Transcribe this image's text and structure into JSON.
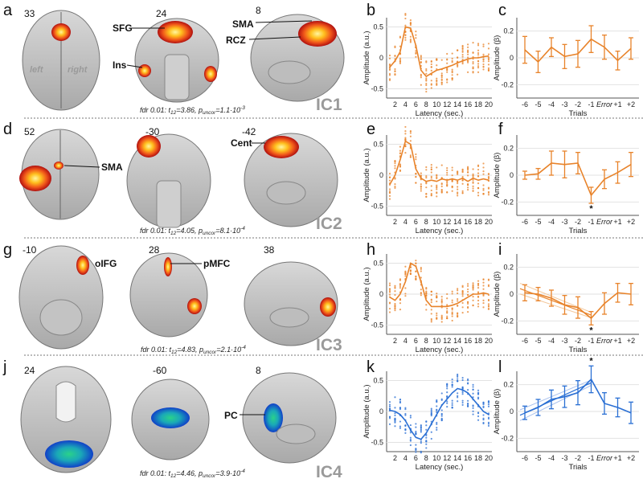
{
  "rows": [
    {
      "id": "IC1",
      "letters": [
        "a",
        "b",
        "c"
      ],
      "ic_label": "IC1",
      "slices": [
        "33",
        "24",
        "8"
      ],
      "regions": [
        "SFG",
        "Ins",
        "SMA",
        "RCZ"
      ],
      "sides": [
        "left",
        "right"
      ],
      "stat": {
        "t_pre": "fdr 0.01: t",
        "t_sub": "12",
        "t_val": "=3.86, p",
        "p_sub": "uncor",
        "p_val": "=1.1·10",
        "p_exp": "-3"
      },
      "colormap": "hot",
      "line_color": "#e8832a"
    },
    {
      "id": "IC2",
      "letters": [
        "d",
        "e",
        "f"
      ],
      "ic_label": "IC2",
      "slices": [
        "52",
        "-30",
        "-42"
      ],
      "regions": [
        "SMA",
        "Cent"
      ],
      "stat": {
        "t_pre": "fdr 0.01: t",
        "t_sub": "12",
        "t_val": "=4.05, p",
        "p_sub": "uncor",
        "p_val": "=8.1·10",
        "p_exp": "-4"
      },
      "colormap": "hot",
      "line_color": "#e8832a",
      "significance_marker": "*"
    },
    {
      "id": "IC3",
      "letters": [
        "g",
        "h",
        "i"
      ],
      "ic_label": "IC3",
      "slices": [
        "-10",
        "28",
        "38"
      ],
      "regions": [
        "oIFG",
        "pMFC"
      ],
      "stat": {
        "t_pre": "fdr 0.01: t",
        "t_sub": "12",
        "t_val": "=4.83, p",
        "p_sub": "uncor",
        "p_val": "=2.1·10",
        "p_exp": "-4"
      },
      "colormap": "hot",
      "line_color": "#e8832a",
      "significance_marker": "*"
    },
    {
      "id": "IC4",
      "letters": [
        "j",
        "k",
        "l"
      ],
      "ic_label": "IC4",
      "slices": [
        "24",
        "-60",
        "8"
      ],
      "regions": [
        "PC"
      ],
      "stat": {
        "t_pre": "fdr 0.01: t",
        "t_sub": "12",
        "t_val": "=4.46, p",
        "p_sub": "uncor",
        "p_val": "=3.9·10",
        "p_exp": "-4"
      },
      "colormap": "winter",
      "line_color": "#2a6fd4",
      "significance_marker": "*"
    }
  ],
  "chart_data": [
    {
      "panel": "b",
      "type": "line",
      "x": [
        1,
        2,
        3,
        4,
        5,
        6,
        7,
        8,
        9,
        10,
        11,
        12,
        13,
        14,
        15,
        16,
        17,
        18,
        19,
        20
      ],
      "values": [
        -0.15,
        -0.05,
        0.1,
        0.5,
        0.48,
        0.2,
        -0.2,
        -0.3,
        -0.25,
        -0.2,
        -0.18,
        -0.15,
        -0.12,
        -0.08,
        -0.05,
        -0.02,
        0.0,
        0.0,
        0.02,
        0.03
      ],
      "xlabel": "Latency (sec.)",
      "ylabel": "Amplitude (a.u.)",
      "xticks": [
        2,
        4,
        6,
        8,
        10,
        12,
        14,
        16,
        18,
        20
      ],
      "yticks": [
        0.5,
        0,
        -0.5
      ],
      "ylim": [
        -0.65,
        0.65
      ]
    },
    {
      "panel": "c",
      "type": "line",
      "categories": [
        "-6",
        "-5",
        "-4",
        "-3",
        "-2",
        "-1",
        "Error",
        "+1",
        "+2"
      ],
      "values": [
        0.06,
        -0.03,
        0.08,
        0.01,
        0.03,
        0.14,
        0.08,
        -0.02,
        0.07
      ],
      "errors": [
        0.1,
        0.08,
        0.07,
        0.09,
        0.1,
        0.1,
        0.09,
        0.07,
        0.08
      ],
      "xlabel": "Trials",
      "ylabel": "Amplitude (β)",
      "yticks": [
        0.2,
        0,
        -0.2
      ],
      "ylim": [
        -0.3,
        0.3
      ]
    },
    {
      "panel": "e",
      "type": "line",
      "x": [
        1,
        2,
        3,
        4,
        5,
        6,
        7,
        8,
        9,
        10,
        11,
        12,
        13,
        14,
        15,
        16,
        17,
        18,
        19,
        20
      ],
      "values": [
        -0.15,
        0.0,
        0.25,
        0.55,
        0.5,
        0.1,
        -0.05,
        -0.1,
        -0.08,
        -0.1,
        -0.06,
        -0.08,
        -0.06,
        -0.08,
        -0.05,
        -0.1,
        -0.05,
        -0.08,
        -0.06,
        -0.08
      ],
      "xlabel": "Latency (sec.)",
      "ylabel": "Amplitude (a.u.)",
      "xticks": [
        2,
        4,
        6,
        8,
        10,
        12,
        14,
        16,
        18,
        20
      ],
      "yticks": [
        0.5,
        0,
        -0.5
      ],
      "ylim": [
        -0.65,
        0.65
      ]
    },
    {
      "panel": "f",
      "type": "line",
      "categories": [
        "-6",
        "-5",
        "-4",
        "-3",
        "-2",
        "-1",
        "Error",
        "+1",
        "+2"
      ],
      "values": [
        0.0,
        0.01,
        0.09,
        0.08,
        0.09,
        -0.15,
        -0.03,
        0.02,
        0.08
      ],
      "errors": [
        0.03,
        0.04,
        0.09,
        0.1,
        0.08,
        0.06,
        0.07,
        0.08,
        0.09
      ],
      "xlabel": "Trials",
      "ylabel": "Amplitude (β)",
      "yticks": [
        0.2,
        0,
        -0.2
      ],
      "ylim": [
        -0.3,
        0.3
      ]
    },
    {
      "panel": "h",
      "type": "line",
      "x": [
        1,
        2,
        3,
        4,
        5,
        6,
        7,
        8,
        9,
        10,
        11,
        12,
        13,
        14,
        15,
        16,
        17,
        18,
        19,
        20
      ],
      "values": [
        -0.05,
        -0.1,
        0.0,
        0.2,
        0.5,
        0.45,
        0.2,
        -0.1,
        -0.2,
        -0.2,
        -0.2,
        -0.2,
        -0.18,
        -0.15,
        -0.1,
        -0.05,
        0.0,
        0.0,
        0.02,
        0.0
      ],
      "xlabel": "Latency (sec.)",
      "ylabel": "Amplitude (a.u.)",
      "xticks": [
        2,
        4,
        6,
        8,
        10,
        12,
        14,
        16,
        18,
        20
      ],
      "yticks": [
        0.5,
        0,
        -0.5
      ],
      "ylim": [
        -0.65,
        0.65
      ]
    },
    {
      "panel": "i",
      "type": "line",
      "categories": [
        "-6",
        "-5",
        "-4",
        "-3",
        "-2",
        "-1",
        "Error",
        "+1",
        "+2"
      ],
      "values": [
        0.01,
        0.0,
        -0.03,
        -0.08,
        -0.1,
        -0.18,
        -0.07,
        0.01,
        0.0
      ],
      "errors": [
        0.06,
        0.05,
        0.06,
        0.07,
        0.08,
        0.05,
        0.08,
        0.07,
        0.08
      ],
      "trend_lines": true,
      "xlabel": "Trials",
      "ylabel": "Amplitude (β)",
      "yticks": [
        0.2,
        0,
        -0.2
      ],
      "ylim": [
        -0.3,
        0.3
      ]
    },
    {
      "panel": "k",
      "type": "line",
      "x": [
        1,
        2,
        3,
        4,
        5,
        6,
        7,
        8,
        9,
        10,
        11,
        12,
        13,
        14,
        15,
        16,
        17,
        18,
        19,
        20
      ],
      "values": [
        0.02,
        0.0,
        -0.05,
        -0.15,
        -0.3,
        -0.42,
        -0.45,
        -0.35,
        -0.2,
        -0.05,
        0.1,
        0.2,
        0.3,
        0.37,
        0.35,
        0.3,
        0.2,
        0.1,
        0.0,
        -0.05
      ],
      "xlabel": "Latency (sec.)",
      "ylabel": "Amplitude (a.u.)",
      "xticks": [
        2,
        4,
        6,
        8,
        10,
        12,
        14,
        16,
        18,
        20
      ],
      "yticks": [
        0.5,
        0,
        -0.5
      ],
      "ylim": [
        -0.65,
        0.65
      ]
    },
    {
      "panel": "l",
      "type": "line",
      "categories": [
        "-6",
        "-5",
        "-4",
        "-3",
        "-2",
        "-1",
        "Error",
        "+1",
        "+2"
      ],
      "values": [
        -0.01,
        0.03,
        0.09,
        0.11,
        0.14,
        0.24,
        0.06,
        0.03,
        -0.01
      ],
      "errors": [
        0.05,
        0.06,
        0.07,
        0.08,
        0.09,
        0.1,
        0.08,
        0.07,
        0.08
      ],
      "trend_lines": true,
      "xlabel": "Trials",
      "ylabel": "Amplitude (β)",
      "yticks": [
        0.2,
        0,
        -0.2
      ],
      "ylim": [
        -0.3,
        0.3
      ]
    }
  ]
}
